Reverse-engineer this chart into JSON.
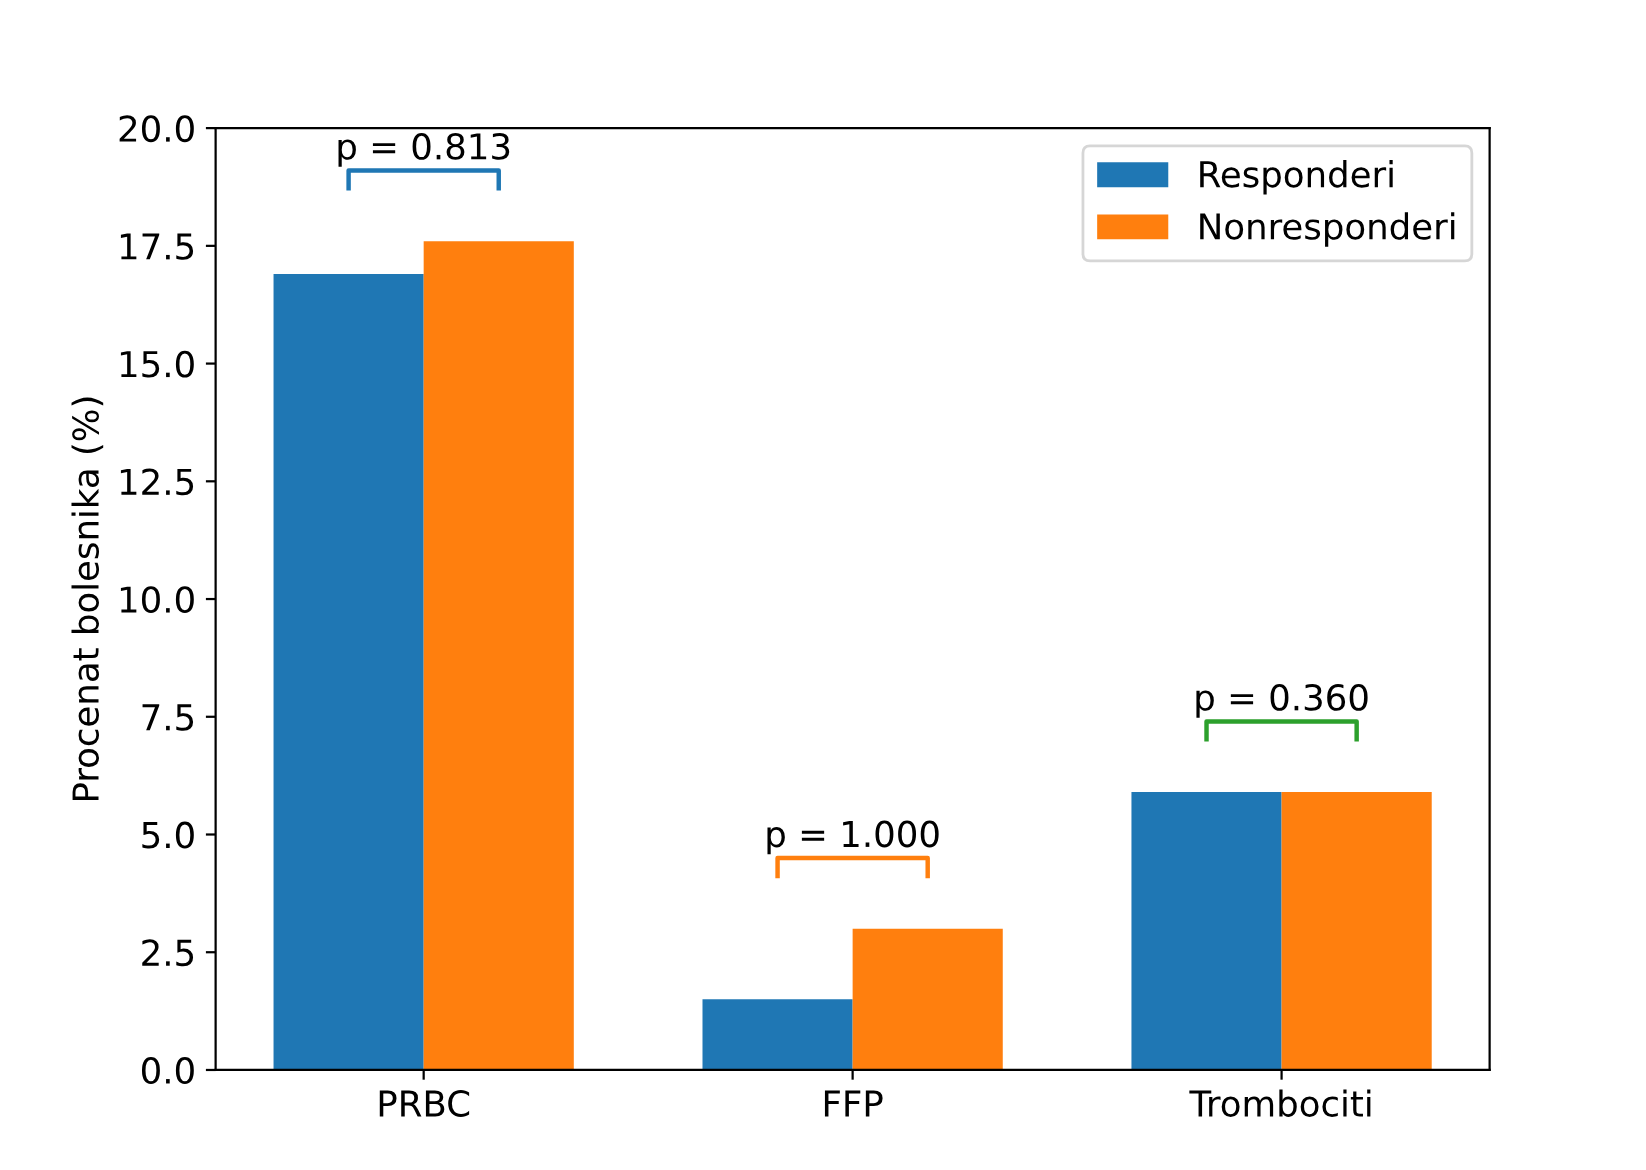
{
  "chart_data": {
    "type": "bar",
    "ylabel": "Procenat bolesnika (%)",
    "categories": [
      "PRBC",
      "FFP",
      "Trombociti"
    ],
    "series": [
      {
        "name": "Responderi",
        "color": "#1f77b4",
        "values": [
          16.9,
          1.5,
          5.9
        ]
      },
      {
        "name": "Nonresponderi",
        "color": "#ff7f0e",
        "values": [
          17.6,
          3.0,
          5.9
        ]
      }
    ],
    "ylim": [
      0,
      20
    ],
    "yticks": [
      {
        "value": 0,
        "label": "0.0"
      },
      2.5,
      {
        "value": 5,
        "label": "5.0"
      },
      7.5,
      {
        "value": 10,
        "label": "10.0"
      },
      12.5,
      {
        "value": 15,
        "label": "15.0"
      },
      17.5,
      {
        "value": 20,
        "label": "20.0"
      }
    ],
    "legend": "top right",
    "grid": false,
    "annotations": [
      "p = 0.813",
      "p = 1.000",
      "p = 0.360"
    ]
  }
}
